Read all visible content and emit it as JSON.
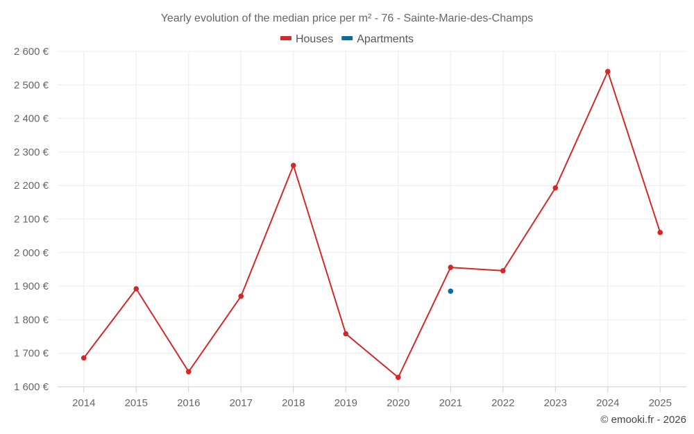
{
  "chart_data": {
    "type": "line",
    "title": "Yearly evolution of the median price per m² - 76 - Sainte-Marie-des-Champs",
    "xlabel": "",
    "ylabel": "",
    "categories": [
      "2014",
      "2015",
      "2016",
      "2017",
      "2018",
      "2019",
      "2020",
      "2021",
      "2022",
      "2023",
      "2024",
      "2025"
    ],
    "ylim": [
      1600,
      2600
    ],
    "yticks": [
      1600,
      1700,
      1800,
      1900,
      2000,
      2100,
      2200,
      2300,
      2400,
      2500,
      2600
    ],
    "ytick_labels": [
      "1 600 €",
      "1 700 €",
      "1 800 €",
      "1 900 €",
      "2 000 €",
      "2 100 €",
      "2 200 €",
      "2 300 €",
      "2 400 €",
      "2 500 €",
      "2 600 €"
    ],
    "grid": true,
    "legend_position": "top-center",
    "series": [
      {
        "name": "Houses",
        "color": "#d62728",
        "values": [
          1686,
          1892,
          1645,
          1870,
          2260,
          1758,
          1628,
          1956,
          1946,
          2193,
          2540,
          2060
        ]
      },
      {
        "name": "Apartments",
        "color": "#0d6aa0",
        "values": [
          null,
          null,
          null,
          null,
          null,
          null,
          null,
          1885,
          null,
          null,
          null,
          null
        ]
      }
    ]
  },
  "credit": "© emooki.fr - 2026"
}
